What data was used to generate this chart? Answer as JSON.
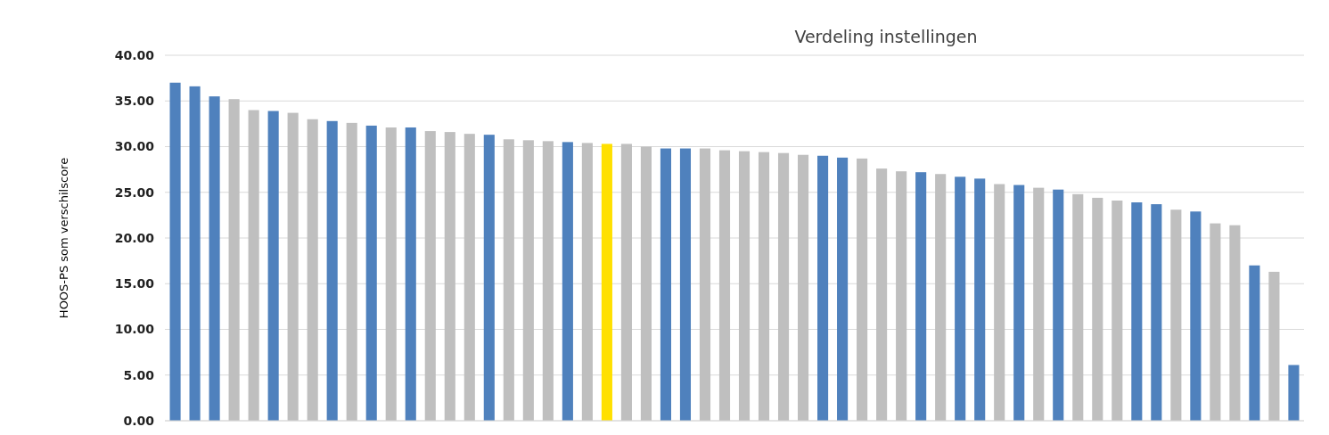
{
  "chart_data": {
    "type": "bar",
    "title": "Verdeling instellingen",
    "ylabel": "HOOS-PS som verschilscore",
    "categories": [
      null,
      null,
      null,
      null,
      null,
      null,
      null,
      null,
      null,
      null,
      null,
      null,
      null,
      null,
      null,
      null,
      null,
      null,
      null,
      null,
      null,
      null,
      null,
      null,
      null,
      null,
      null,
      null,
      null,
      null,
      null,
      null,
      null,
      null,
      null,
      null,
      null,
      null,
      null,
      null,
      null,
      null,
      null,
      null,
      null,
      null,
      null,
      null,
      null,
      null,
      null,
      null,
      null,
      null,
      null,
      null,
      null,
      null
    ],
    "values": [
      37.0,
      36.6,
      35.5,
      35.2,
      34.0,
      33.9,
      33.7,
      33.0,
      32.8,
      32.6,
      32.3,
      32.1,
      32.1,
      31.7,
      31.6,
      31.4,
      31.3,
      30.8,
      30.7,
      30.6,
      30.5,
      30.4,
      30.3,
      30.3,
      30.0,
      29.8,
      29.8,
      29.8,
      29.6,
      29.5,
      29.4,
      29.3,
      29.1,
      29.0,
      28.8,
      28.7,
      27.6,
      27.3,
      27.2,
      27.0,
      26.7,
      26.5,
      25.9,
      25.8,
      25.5,
      25.3,
      24.8,
      24.4,
      24.1,
      23.9,
      23.7,
      23.1,
      22.9,
      21.6,
      21.4,
      17.0,
      16.3,
      6.1
    ],
    "colors": [
      "#4f81bd",
      "#4f81bd",
      "#4f81bd",
      "#bfbfbf",
      "#bfbfbf",
      "#4f81bd",
      "#bfbfbf",
      "#bfbfbf",
      "#4f81bd",
      "#bfbfbf",
      "#4f81bd",
      "#bfbfbf",
      "#4f81bd",
      "#bfbfbf",
      "#bfbfbf",
      "#bfbfbf",
      "#4f81bd",
      "#bfbfbf",
      "#bfbfbf",
      "#bfbfbf",
      "#4f81bd",
      "#bfbfbf",
      "#ffe000",
      "#bfbfbf",
      "#bfbfbf",
      "#4f81bd",
      "#4f81bd",
      "#bfbfbf",
      "#bfbfbf",
      "#bfbfbf",
      "#bfbfbf",
      "#bfbfbf",
      "#bfbfbf",
      "#4f81bd",
      "#4f81bd",
      "#bfbfbf",
      "#bfbfbf",
      "#bfbfbf",
      "#4f81bd",
      "#bfbfbf",
      "#4f81bd",
      "#4f81bd",
      "#bfbfbf",
      "#4f81bd",
      "#bfbfbf",
      "#4f81bd",
      "#bfbfbf",
      "#bfbfbf",
      "#bfbfbf",
      "#4f81bd",
      "#4f81bd",
      "#bfbfbf",
      "#4f81bd",
      "#bfbfbf",
      "#bfbfbf",
      "#4f81bd",
      "#bfbfbf",
      "#4f81bd"
    ],
    "ylim": [
      0,
      40
    ],
    "yticks": [
      {
        "value": 0,
        "label": "0.00"
      },
      {
        "value": 5,
        "label": "5.00"
      },
      {
        "value": 10,
        "label": "10.00"
      },
      {
        "value": 15,
        "label": "15.00"
      },
      {
        "value": 20,
        "label": "20.00"
      },
      {
        "value": 25,
        "label": "25.00"
      },
      {
        "value": 30,
        "label": "30.00"
      },
      {
        "value": 35,
        "label": "35.00"
      },
      {
        "value": 40,
        "label": "40.00"
      }
    ],
    "grid": "y"
  }
}
